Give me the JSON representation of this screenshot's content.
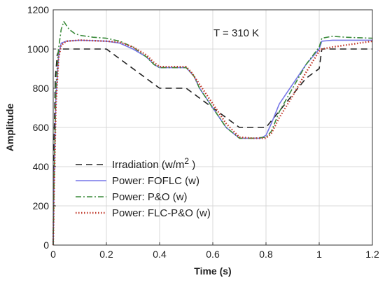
{
  "chart_data": {
    "type": "line",
    "xlabel": "Time (s)",
    "ylabel": "Amplitude",
    "xlim": [
      0,
      1.2
    ],
    "ylim": [
      0,
      1200
    ],
    "xticks": [
      0,
      0.2,
      0.4,
      0.6,
      0.8,
      1,
      1.2
    ],
    "xtick_labels": [
      "0",
      "0.2",
      "0.4",
      "0.6",
      "0.8",
      "1",
      "1.2"
    ],
    "yticks": [
      0,
      200,
      400,
      600,
      800,
      1000,
      1200
    ],
    "ytick_labels": [
      "0",
      "200",
      "400",
      "600",
      "800",
      "1000",
      "1200"
    ],
    "grid": true,
    "legend_position": "bottom-left",
    "annotations": [
      {
        "text": "T = 310 K"
      }
    ],
    "series": [
      {
        "name": "Irradiation (w/m2 )",
        "legend_base": "Irradiation (w/m",
        "legend_sup": "2",
        "legend_tail": " )",
        "color": "#222222",
        "style": "dashed",
        "x": [
          0,
          0.003,
          0.008,
          0.015,
          0.022,
          0.03,
          0.2,
          0.4,
          0.5,
          0.7,
          0.8,
          0.95,
          1.0,
          1.01,
          1.2
        ],
        "y": [
          0,
          500,
          850,
          970,
          995,
          1000,
          1000,
          800,
          800,
          600,
          600,
          850,
          900,
          1000,
          1000
        ]
      },
      {
        "name": "Power: FOFLC (w)",
        "color": "#7777e8",
        "style": "solid",
        "x": [
          0,
          0.003,
          0.01,
          0.02,
          0.03,
          0.05,
          0.1,
          0.2,
          0.25,
          0.3,
          0.35,
          0.38,
          0.4,
          0.45,
          0.48,
          0.5,
          0.53,
          0.55,
          0.6,
          0.65,
          0.7,
          0.72,
          0.75,
          0.78,
          0.8,
          0.82,
          0.85,
          0.9,
          0.95,
          1.0,
          1.01,
          1.05,
          1.1,
          1.2
        ],
        "y": [
          0,
          300,
          750,
          960,
          1030,
          1040,
          1045,
          1040,
          1030,
          1000,
          960,
          920,
          905,
          905,
          905,
          905,
          860,
          800,
          700,
          600,
          545,
          545,
          545,
          545,
          560,
          620,
          720,
          820,
          920,
          1000,
          1040,
          1045,
          1045,
          1045
        ]
      },
      {
        "name": "Power: P&O (w)",
        "color": "#3a8a3a",
        "style": "dashdot",
        "x": [
          0,
          0.003,
          0.01,
          0.02,
          0.03,
          0.04,
          0.05,
          0.06,
          0.08,
          0.1,
          0.15,
          0.2,
          0.25,
          0.3,
          0.35,
          0.38,
          0.4,
          0.45,
          0.5,
          0.53,
          0.55,
          0.6,
          0.65,
          0.7,
          0.75,
          0.8,
          0.82,
          0.85,
          0.9,
          0.95,
          1.0,
          1.01,
          1.05,
          1.1,
          1.2
        ],
        "y": [
          0,
          300,
          800,
          1000,
          1100,
          1140,
          1120,
          1100,
          1080,
          1070,
          1060,
          1055,
          1040,
          1010,
          960,
          920,
          905,
          905,
          905,
          860,
          800,
          700,
          600,
          545,
          545,
          550,
          580,
          680,
          800,
          920,
          1010,
          1055,
          1065,
          1060,
          1055
        ]
      },
      {
        "name": "Power: FLC-P&O (w)",
        "color": "#c0392b",
        "style": "dotted",
        "x": [
          0,
          0.003,
          0.01,
          0.02,
          0.03,
          0.05,
          0.1,
          0.2,
          0.25,
          0.3,
          0.35,
          0.38,
          0.4,
          0.45,
          0.5,
          0.52,
          0.55,
          0.6,
          0.65,
          0.7,
          0.75,
          0.78,
          0.8,
          0.82,
          0.85,
          0.9,
          0.95,
          1.0,
          1.01,
          1.05,
          1.1,
          1.2
        ],
        "y": [
          0,
          250,
          700,
          950,
          1020,
          1040,
          1045,
          1040,
          1035,
          1010,
          970,
          930,
          910,
          910,
          910,
          880,
          820,
          720,
          620,
          550,
          545,
          545,
          545,
          570,
          650,
          760,
          880,
          990,
          1000,
          1010,
          1020,
          1040
        ]
      }
    ]
  }
}
